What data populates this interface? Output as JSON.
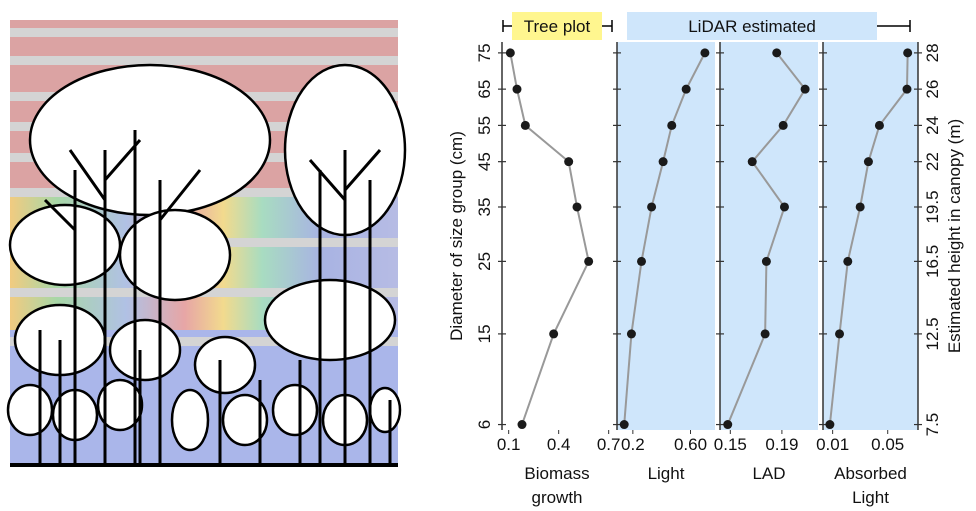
{
  "chart_data": {
    "type": "line",
    "y_label": "Diameter of size group (cm)",
    "y2_label": "Estimated height in canopy (m)",
    "groups": [
      "Tree plot",
      "LiDAR estimated"
    ],
    "group_colors": [
      "#fff68f",
      "#cfe6fb"
    ],
    "categories": [
      6,
      15,
      25,
      35,
      45,
      55,
      65,
      75
    ],
    "y": [
      7.5,
      12.5,
      16.5,
      19.5,
      22,
      24,
      26,
      28
    ],
    "ylim": [
      7.2,
      28.6
    ],
    "yticks": [
      7.5,
      12.5,
      16.5,
      19.5,
      22,
      24,
      26,
      28
    ],
    "line_color": "#999999",
    "marker_color": "#1a1a1a",
    "series": [
      {
        "name": "Biomass growth",
        "values": [
          0.18,
          0.37,
          0.58,
          0.51,
          0.46,
          0.2,
          0.15,
          0.11
        ],
        "xlim": [
          0.06,
          0.72
        ],
        "xticks": [
          0.1,
          0.4,
          0.7
        ]
      },
      {
        "name": "Light",
        "values": [
          0.14,
          0.19,
          0.26,
          0.33,
          0.41,
          0.47,
          0.57,
          0.7
        ],
        "xlim": [
          0.09,
          0.77
        ],
        "xticks": [
          0.2,
          {
            "value": 0.6,
            "label": "0.60"
          }
        ],
        "background": "#cfe6fb"
      },
      {
        "name": "LAD",
        "values": [
          0.148,
          0.177,
          0.178,
          0.192,
          0.167,
          0.191,
          0.208,
          0.186
        ],
        "xlim": [
          0.142,
          0.218
        ],
        "xticks": [
          0.15,
          0.19
        ],
        "background": "#cfe6fb"
      },
      {
        "name": "Absorbed Light",
        "values": [
          0.008,
          0.015,
          0.021,
          0.03,
          0.036,
          0.044,
          0.064,
          0.0645
        ],
        "xlim": [
          0.003,
          0.072
        ],
        "xticks": [
          0.01,
          0.05
        ],
        "background": "#cfe6fb"
      }
    ]
  }
}
